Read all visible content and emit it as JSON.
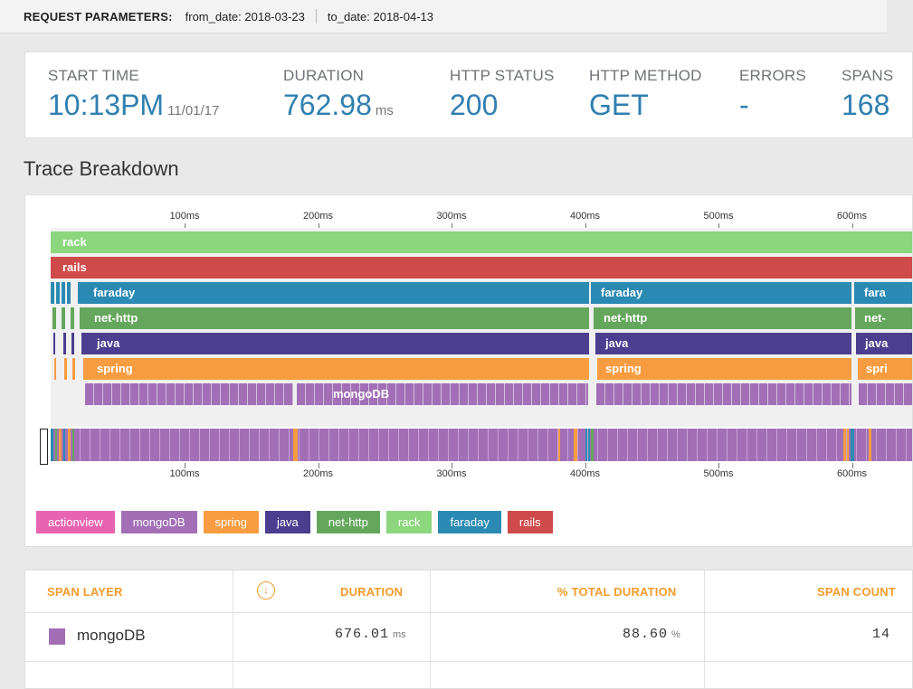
{
  "request_params": {
    "label": "REQUEST PARAMETERS:",
    "from": "from_date: 2018-03-23",
    "to": "to_date: 2018-04-13"
  },
  "stats": [
    {
      "label": "START TIME",
      "value": "10:13PM",
      "unit": "11/01/17"
    },
    {
      "label": "DURATION",
      "value": "762.98",
      "unit": "ms"
    },
    {
      "label": "HTTP STATUS",
      "value": "200",
      "unit": ""
    },
    {
      "label": "HTTP METHOD",
      "value": "GET",
      "unit": ""
    },
    {
      "label": "ERRORS",
      "value": "-",
      "unit": ""
    },
    {
      "label": "SPANS",
      "value": "168",
      "unit": ""
    }
  ],
  "trace": {
    "title": "Trace Breakdown",
    "axis_ticks": [
      "100ms",
      "200ms",
      "300ms",
      "400ms",
      "500ms",
      "600ms"
    ],
    "layers": [
      {
        "name": "rack",
        "color": "#8cd67e"
      },
      {
        "name": "rails",
        "color": "#cf4a4a"
      },
      {
        "name": "faraday",
        "color": "#2b8ab3"
      },
      {
        "name": "net-http",
        "color": "#64a75c"
      },
      {
        "name": "java",
        "color": "#4b3d8f"
      },
      {
        "name": "spring",
        "color": "#f89c41"
      },
      {
        "name": "mongoDB",
        "color": "#a26fb7"
      }
    ],
    "legend": [
      {
        "name": "actionview",
        "color": "#e864b0"
      },
      {
        "name": "mongoDB",
        "color": "#a26fb7"
      },
      {
        "name": "spring",
        "color": "#f89c41"
      },
      {
        "name": "java",
        "color": "#4b3d8f"
      },
      {
        "name": "net-http",
        "color": "#64a75c"
      },
      {
        "name": "rack",
        "color": "#8cd67e"
      },
      {
        "name": "faraday",
        "color": "#2b8ab3"
      },
      {
        "name": "rails",
        "color": "#cf4a4a"
      }
    ]
  },
  "table": {
    "headers": [
      "SPAN LAYER",
      "DURATION",
      "% TOTAL DURATION",
      "SPAN COUNT"
    ],
    "rows": [
      {
        "layer": "mongoDB",
        "color": "#a26fb7",
        "duration": "676.01",
        "duration_unit": "ms",
        "percent": "88.60",
        "percent_unit": "%",
        "count": "14"
      }
    ]
  }
}
